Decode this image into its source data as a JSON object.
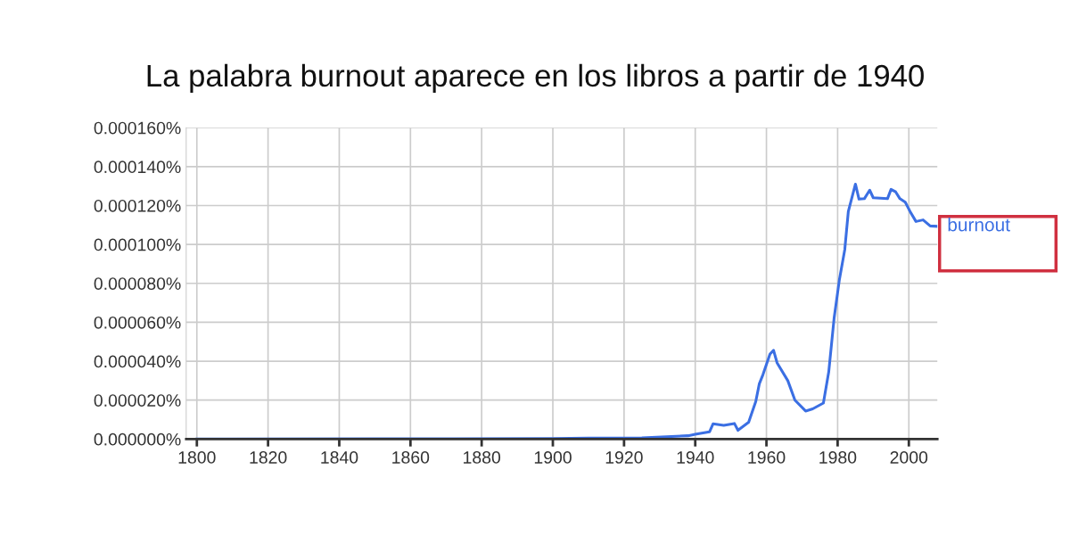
{
  "chart_data": {
    "type": "line",
    "title": "La palabra burnout aparece en los libros a partir de 1940",
    "x": [
      1800,
      1850,
      1900,
      1910,
      1920,
      1925,
      1938,
      1940,
      1944,
      1945,
      1948,
      1951,
      1952,
      1955,
      1957,
      1958,
      1959,
      1961,
      1962,
      1963,
      1966,
      1968,
      1971,
      1973,
      1976,
      1977.5,
      1979,
      1980.5,
      1982,
      1983,
      1985,
      1986,
      1987.5,
      1989,
      1990,
      1994,
      1995,
      1996.3,
      1997.5,
      1999,
      2000.5,
      2002,
      2004,
      2006,
      2008
    ],
    "series": [
      {
        "name": "burnout",
        "color": "#3b6fe3",
        "values": [
          0,
          1e-07,
          3e-07,
          5e-07,
          5e-07,
          6e-07,
          1.7e-06,
          2.4e-06,
          3.7e-06,
          7.8e-06,
          7e-06,
          8e-06,
          4.5e-06,
          8.6e-06,
          1.93e-05,
          2.84e-05,
          3.3e-05,
          4.37e-05,
          4.56e-05,
          3.91e-05,
          3e-05,
          2e-05,
          1.44e-05,
          1.55e-05,
          1.85e-05,
          3.45e-05,
          6.2e-05,
          8.2e-05,
          9.73e-05,
          0.000117,
          0.000131,
          0.0001233,
          0.0001235,
          0.0001279,
          0.000124,
          0.0001235,
          0.0001283,
          0.000127,
          0.0001235,
          0.0001217,
          0.0001164,
          0.0001118,
          0.0001126,
          0.0001095,
          0.0001093
        ]
      }
    ],
    "xlim": [
      1797,
      2008
    ],
    "xticks": [
      1800,
      1820,
      1840,
      1860,
      1880,
      1900,
      1920,
      1940,
      1960,
      1980,
      2000
    ],
    "ylim": [
      0,
      0.00016
    ],
    "yticks": [
      {
        "value": 0,
        "label": "0.000000%"
      },
      {
        "value": 2e-05,
        "label": "0.000020%"
      },
      {
        "value": 4e-05,
        "label": "0.000040%"
      },
      {
        "value": 6e-05,
        "label": "0.000060%"
      },
      {
        "value": 8e-05,
        "label": "0.000080%"
      },
      {
        "value": 0.0001,
        "label": "0.000100%"
      },
      {
        "value": 0.00012,
        "label": "0.000120%"
      },
      {
        "value": 0.00014,
        "label": "0.000140%"
      },
      {
        "value": 0.00016,
        "label": "0.000160%"
      }
    ],
    "grid": true,
    "legend": false,
    "marker": "none",
    "line_style": "solid"
  }
}
